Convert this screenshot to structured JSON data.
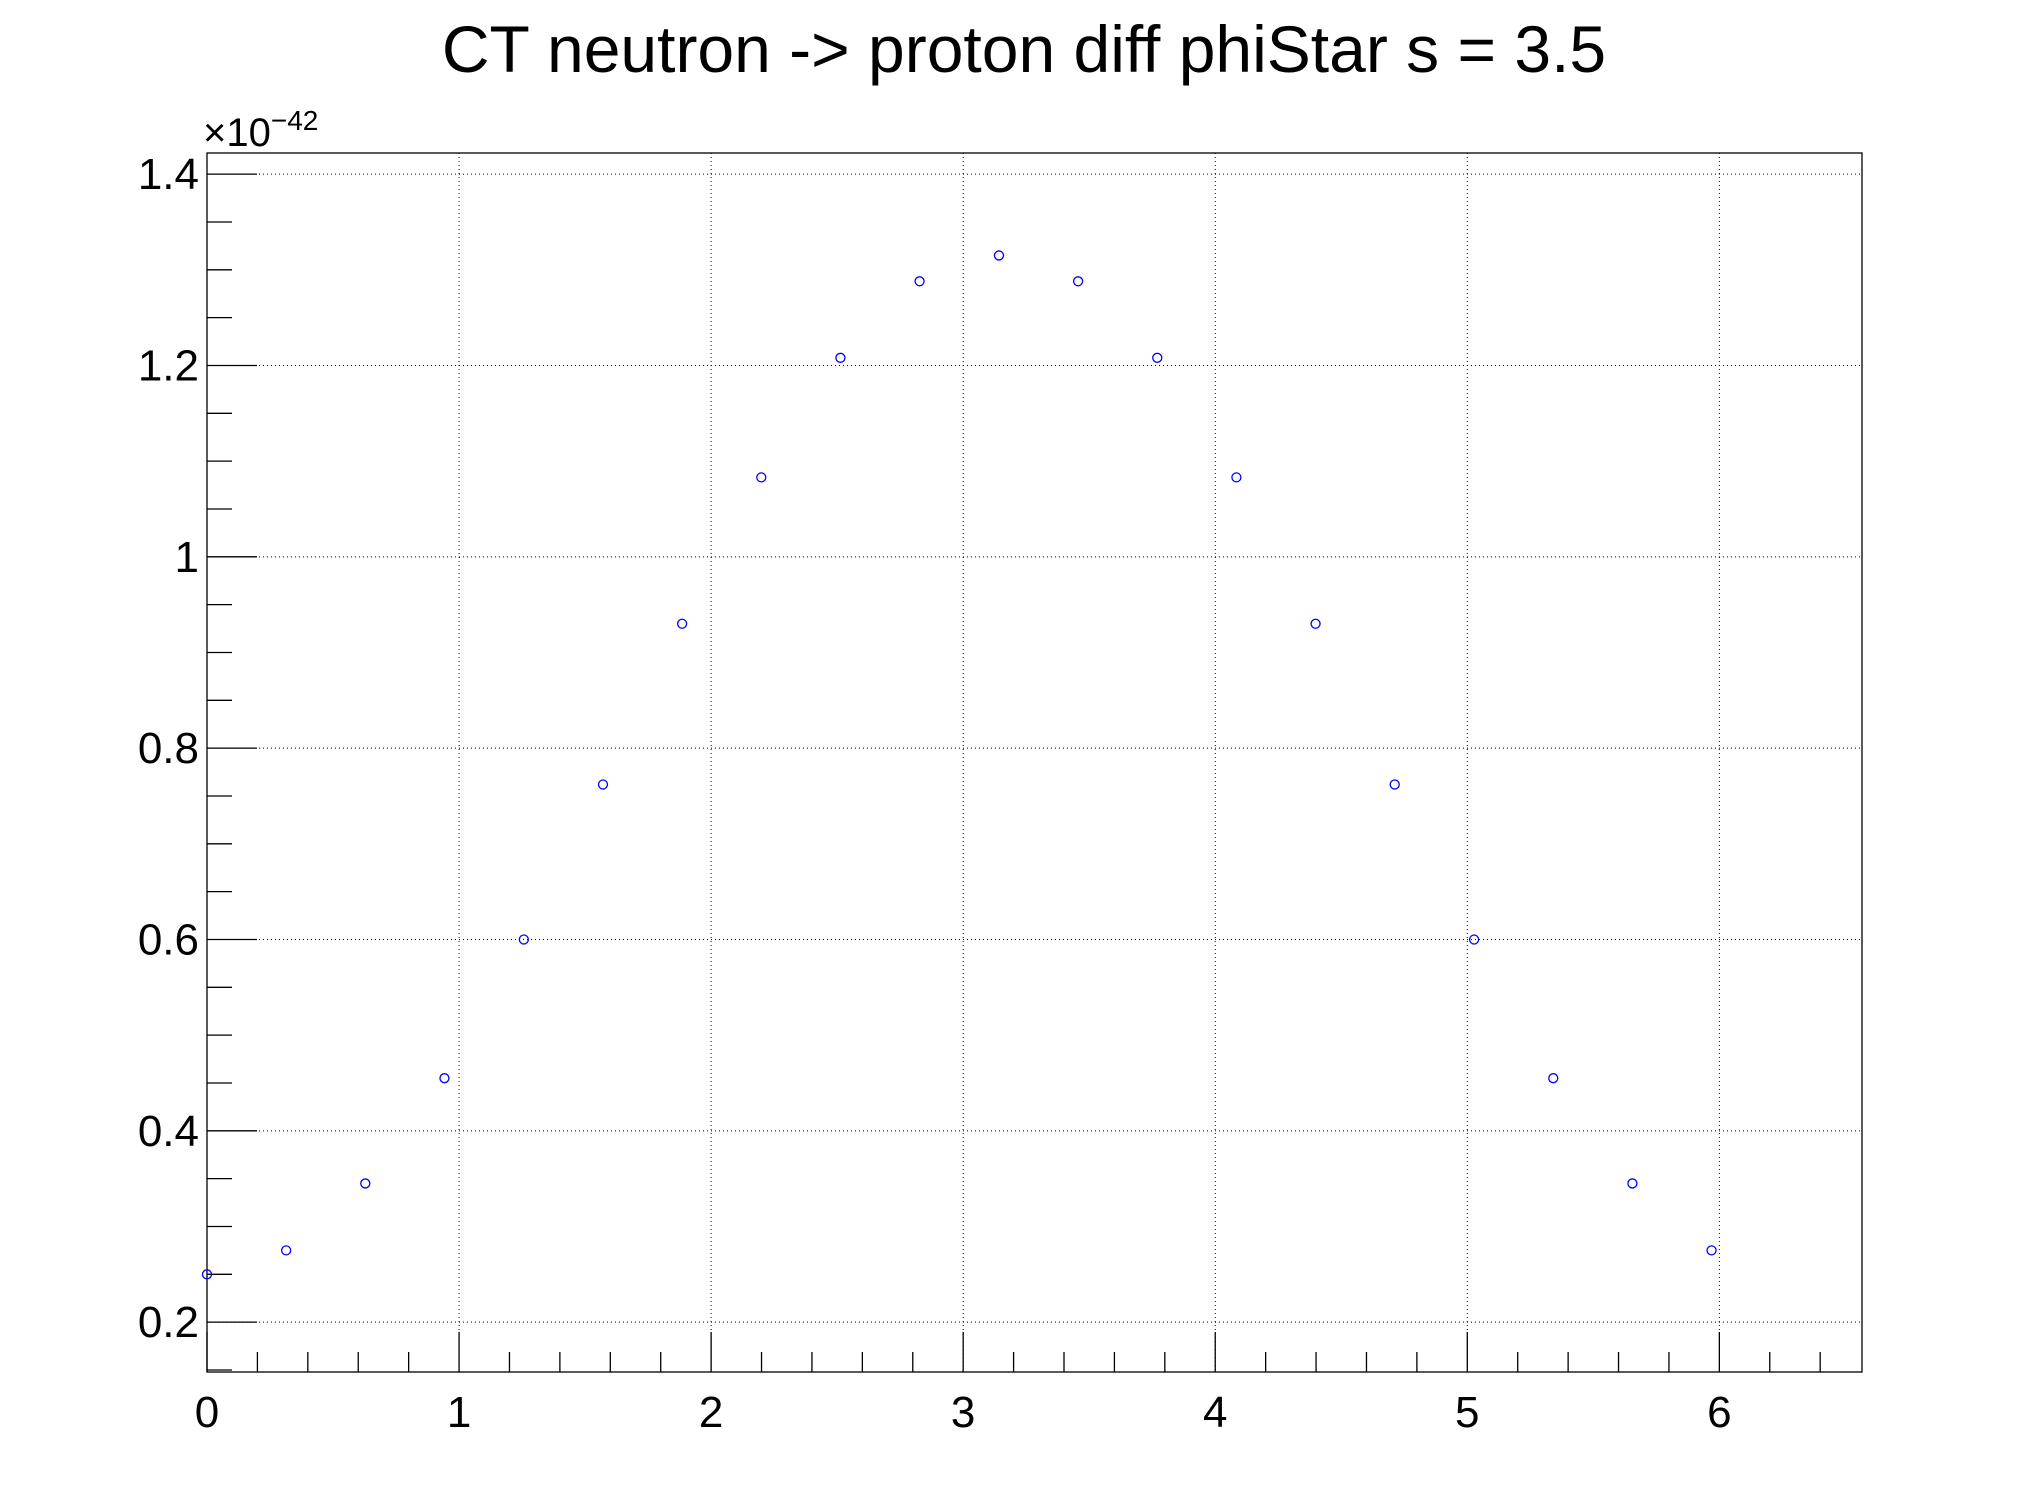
{
  "chart_data": {
    "type": "scatter",
    "title": "CT neutron -> proton diff phiStar s = 3.5",
    "xlabel": "",
    "ylabel": "",
    "y_multiplier_label": "×10",
    "y_multiplier_exponent": "−42",
    "xlim": [
      0,
      6.5659
    ],
    "ylim": [
      0.1479,
      1.4221
    ],
    "x_ticks": [
      {
        "value": 0,
        "label": "0"
      },
      {
        "value": 1,
        "label": "1"
      },
      {
        "value": 2,
        "label": "2"
      },
      {
        "value": 3,
        "label": "3"
      },
      {
        "value": 4,
        "label": "4"
      },
      {
        "value": 5,
        "label": "5"
      },
      {
        "value": 6,
        "label": "6"
      }
    ],
    "y_ticks": [
      {
        "value": 0.2,
        "label": "0.2"
      },
      {
        "value": 0.4,
        "label": "0.4"
      },
      {
        "value": 0.6,
        "label": "0.6"
      },
      {
        "value": 0.8,
        "label": "0.8"
      },
      {
        "value": 1.0,
        "label": "1"
      },
      {
        "value": 1.2,
        "label": "1.2"
      },
      {
        "value": 1.4,
        "label": "1.4"
      }
    ],
    "grid": true,
    "marker": "open-circle",
    "marker_color": "#0000ff",
    "series": [
      {
        "x": [
          0,
          0.314,
          0.628,
          0.942,
          1.257,
          1.571,
          1.885,
          2.199,
          2.513,
          2.827,
          3.142,
          3.456,
          3.77,
          4.084,
          4.398,
          4.712,
          5.027,
          5.341,
          5.655,
          5.969
        ],
        "y": [
          0.25,
          0.275,
          0.345,
          0.455,
          0.6,
          0.762,
          0.93,
          1.083,
          1.208,
          1.288,
          1.315,
          1.288,
          1.208,
          1.083,
          0.93,
          0.762,
          0.6,
          0.455,
          0.345,
          0.275
        ]
      }
    ]
  }
}
